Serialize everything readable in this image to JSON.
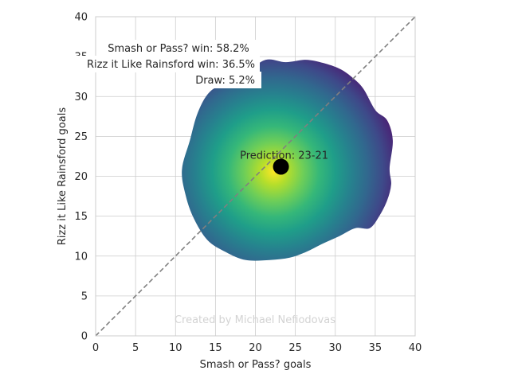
{
  "chart_data": {
    "type": "heatmap",
    "title": "",
    "xlabel": "Smash or Pass? goals",
    "ylabel": "Rizz it Like Rainsford goals",
    "xlim": [
      0,
      40
    ],
    "ylim": [
      0,
      40
    ],
    "xticks": [
      0,
      5,
      10,
      15,
      20,
      25,
      30,
      35,
      40
    ],
    "yticks": [
      0,
      5,
      10,
      15,
      20,
      25,
      30,
      35,
      40
    ],
    "grid": true,
    "colormap": "viridis",
    "density_center": [
      22.3,
      20.6
    ],
    "density_boundary": [
      [
        36.8,
        21.0
      ],
      [
        37.2,
        24.5
      ],
      [
        36.5,
        27.0
      ],
      [
        35.0,
        28.3
      ],
      [
        33.5,
        31.0
      ],
      [
        32.0,
        32.5
      ],
      [
        30.5,
        33.5
      ],
      [
        28.5,
        34.2
      ],
      [
        26.3,
        34.6
      ],
      [
        23.8,
        34.3
      ],
      [
        21.3,
        34.6
      ],
      [
        18.8,
        33.0
      ],
      [
        16.8,
        32.0
      ],
      [
        14.3,
        30.6
      ],
      [
        12.8,
        28.0
      ],
      [
        11.8,
        24.5
      ],
      [
        10.8,
        20.8
      ],
      [
        11.3,
        17.5
      ],
      [
        12.3,
        14.7
      ],
      [
        14.0,
        12.0
      ],
      [
        16.3,
        10.5
      ],
      [
        18.8,
        9.5
      ],
      [
        21.8,
        9.5
      ],
      [
        24.3,
        9.8
      ],
      [
        26.3,
        10.5
      ],
      [
        28.3,
        11.5
      ],
      [
        30.5,
        12.5
      ],
      [
        32.5,
        13.5
      ],
      [
        34.3,
        13.5
      ],
      [
        35.5,
        15.0
      ],
      [
        36.5,
        17.0
      ],
      [
        37.0,
        19.0
      ]
    ],
    "diagonal": {
      "from": [
        0,
        0
      ],
      "to": [
        40,
        40
      ],
      "color": "#808080",
      "style": "dashed"
    },
    "prediction_point": {
      "x": 23.2,
      "y": 21.2,
      "label": "Prediction: 23-21",
      "color": "#000000"
    },
    "annotations": [
      "Smash or Pass? win: 58.2%",
      "Rizz it Like Rainsford win: 36.5%",
      "Draw: 5.2%"
    ],
    "watermark": "Created by Michael Nefiodovas"
  }
}
